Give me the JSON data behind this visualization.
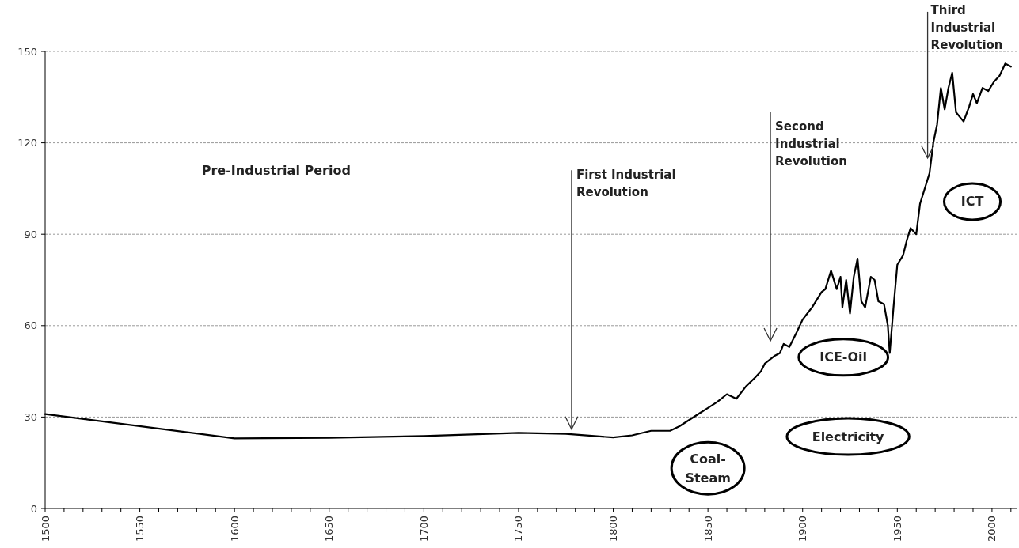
{
  "chart_data": {
    "type": "line",
    "color": "#000000",
    "x": [
      1500,
      1600,
      1650,
      1700,
      1750,
      1775,
      1800,
      1810,
      1820,
      1830,
      1835,
      1840,
      1845,
      1850,
      1855,
      1860,
      1865,
      1870,
      1875,
      1878,
      1880,
      1885,
      1888,
      1890,
      1893,
      1897,
      1900,
      1905,
      1910,
      1912,
      1915,
      1918,
      1920,
      1921,
      1923,
      1925,
      1927,
      1929,
      1931,
      1933,
      1936,
      1938,
      1940,
      1943,
      1945,
      1946,
      1948,
      1950,
      1953,
      1955,
      1957,
      1960,
      1962,
      1965,
      1967,
      1969,
      1971,
      1973,
      1975,
      1977,
      1979,
      1981,
      1985,
      1988,
      1990,
      1992,
      1995,
      1998,
      2001,
      2004,
      2007,
      2010
    ],
    "values": [
      31,
      23,
      23.2,
      23.8,
      24.8,
      24.5,
      23.3,
      24,
      25.5,
      25.5,
      27,
      29,
      31,
      33,
      35,
      37.5,
      36,
      40,
      43,
      45,
      47.5,
      50,
      51,
      54,
      53,
      58,
      62,
      66,
      71,
      72,
      78,
      72,
      76,
      66,
      75,
      64,
      76,
      82,
      68,
      66,
      76,
      75,
      68,
      67,
      60,
      51,
      66,
      80,
      83,
      88,
      92,
      90,
      100,
      106,
      110,
      120,
      126,
      138,
      131,
      138,
      143,
      130,
      127,
      132,
      136,
      133,
      138,
      137,
      140,
      142,
      146,
      145
    ],
    "xlim": [
      1500,
      2013
    ],
    "xticks": [
      1500,
      {
        "value": 1510,
        "label": null
      },
      {
        "value": 1520,
        "label": null
      },
      {
        "value": 1530,
        "label": null
      },
      {
        "value": 1540,
        "label": null
      },
      1550,
      {
        "value": 1560,
        "label": null
      },
      {
        "value": 1570,
        "label": null
      },
      {
        "value": 1580,
        "label": null
      },
      {
        "value": 1590,
        "label": null
      },
      1600,
      {
        "value": 1610,
        "label": null
      },
      {
        "value": 1620,
        "label": null
      },
      {
        "value": 1630,
        "label": null
      },
      {
        "value": 1640,
        "label": null
      },
      1650,
      {
        "value": 1660,
        "label": null
      },
      {
        "value": 1670,
        "label": null
      },
      {
        "value": 1680,
        "label": null
      },
      {
        "value": 1690,
        "label": null
      },
      1700,
      {
        "value": 1710,
        "label": null
      },
      {
        "value": 1720,
        "label": null
      },
      {
        "value": 1730,
        "label": null
      },
      {
        "value": 1740,
        "label": null
      },
      1750,
      {
        "value": 1760,
        "label": null
      },
      {
        "value": 1770,
        "label": null
      },
      {
        "value": 1780,
        "label": null
      },
      {
        "value": 1790,
        "label": null
      },
      1800,
      {
        "value": 1810,
        "label": null
      },
      {
        "value": 1820,
        "label": null
      },
      {
        "value": 1830,
        "label": null
      },
      {
        "value": 1840,
        "label": null
      },
      1850,
      {
        "value": 1860,
        "label": null
      },
      {
        "value": 1870,
        "label": null
      },
      {
        "value": 1880,
        "label": null
      },
      {
        "value": 1890,
        "label": null
      },
      1900,
      {
        "value": 1910,
        "label": null
      },
      {
        "value": 1920,
        "label": null
      },
      {
        "value": 1930,
        "label": null
      },
      {
        "value": 1940,
        "label": null
      },
      1950,
      {
        "value": 1960,
        "label": null
      },
      {
        "value": 1970,
        "label": null
      },
      {
        "value": 1980,
        "label": null
      },
      {
        "value": 1990,
        "label": null
      },
      2000,
      {
        "value": 2010,
        "label": null
      }
    ],
    "ylim": [
      0,
      150
    ],
    "yticks": [
      0,
      30,
      60,
      90,
      120,
      150
    ],
    "grid": "y",
    "line_style": "solid",
    "ref_lines": [
      {
        "axis": "x",
        "value": 1778,
        "label": "First Industrial Revolution"
      },
      {
        "axis": "x",
        "value": 1883,
        "label": "Second Industrial Revolution"
      },
      {
        "axis": "x",
        "value": 1966,
        "label": "Third Industrial Revolution"
      }
    ],
    "annotations": [
      "Pre-Industrial Period",
      "Coal-Steam",
      "ICE-Oil",
      "Electricity",
      "ICT"
    ]
  }
}
